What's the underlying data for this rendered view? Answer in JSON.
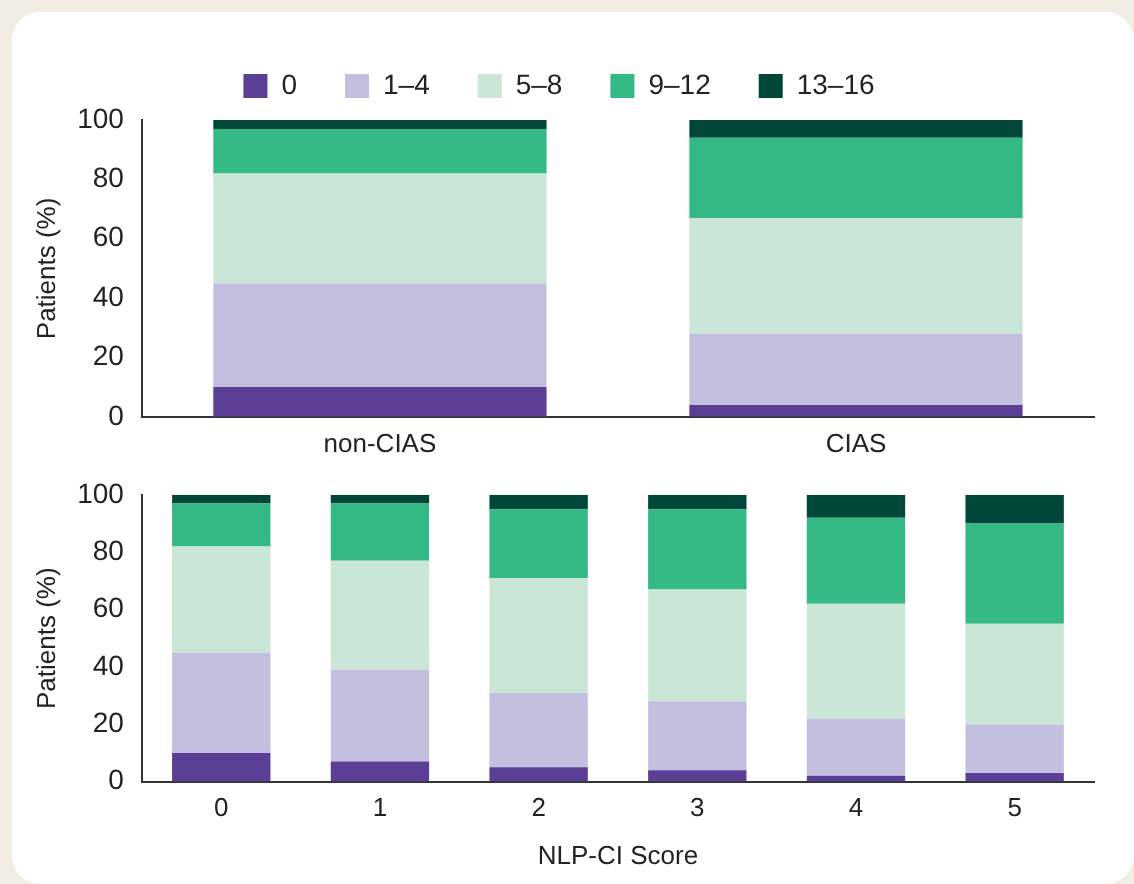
{
  "chart_data": [
    {
      "type": "bar",
      "stacked": true,
      "ylabel": "Patients (%)",
      "categories": [
        "non-CIAS",
        "CIAS"
      ],
      "ylim": [
        0,
        100
      ],
      "yticks": [
        0,
        20,
        40,
        60,
        80,
        100
      ],
      "grid": false,
      "legend": "top",
      "series": [
        {
          "name": "0",
          "color": "#5b3f96",
          "values": [
            10,
            4
          ]
        },
        {
          "name": "1–4",
          "color": "#c3bfdf",
          "values": [
            35,
            24
          ]
        },
        {
          "name": "5–8",
          "color": "#c9e6d6",
          "values": [
            37,
            39
          ]
        },
        {
          "name": "9–12",
          "color": "#34b884",
          "values": [
            15,
            27
          ]
        },
        {
          "name": "13–16",
          "color": "#00473a",
          "values": [
            3,
            6
          ]
        }
      ]
    },
    {
      "type": "bar",
      "stacked": true,
      "xlabel": "NLP-CI Score",
      "ylabel": "Patients (%)",
      "categories": [
        "0",
        "1",
        "2",
        "3",
        "4",
        "5"
      ],
      "ylim": [
        0,
        100
      ],
      "yticks": [
        0,
        20,
        40,
        60,
        80,
        100
      ],
      "grid": false,
      "legend": false,
      "series": [
        {
          "color": "#5b3f96",
          "values": [
            10,
            7,
            5,
            4,
            2,
            3
          ]
        },
        {
          "color": "#c3bfdf",
          "values": [
            35,
            32,
            26,
            24,
            20,
            17
          ]
        },
        {
          "color": "#c9e6d6",
          "values": [
            37,
            38,
            40,
            39,
            40,
            35
          ]
        },
        {
          "color": "#34b884",
          "values": [
            15,
            20,
            24,
            28,
            30,
            35
          ]
        },
        {
          "color": "#00473a",
          "values": [
            3,
            3,
            5,
            5,
            8,
            10
          ]
        }
      ]
    }
  ]
}
